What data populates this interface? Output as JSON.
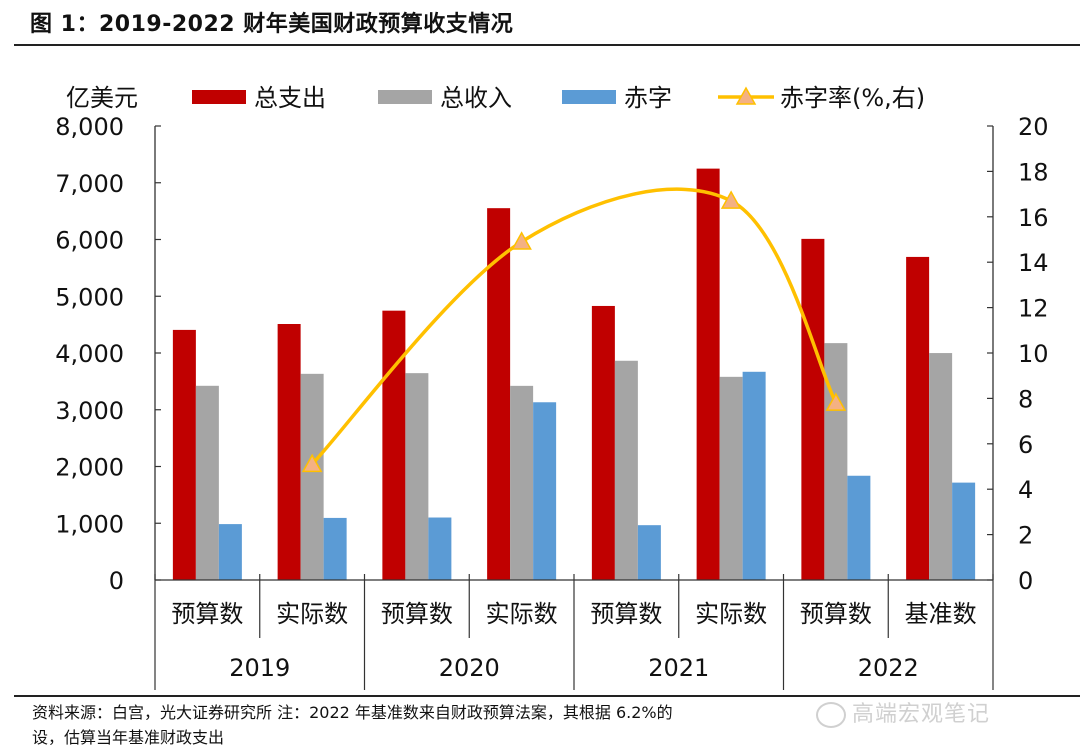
{
  "figure": {
    "title": "图 1：2019-2022 财年美国财政预算收支情况",
    "footnote_line1": "资料来源：白宫，光大证券研究所  注：2022 年基准数来自财政预算法案，其根据 6.2%的",
    "footnote_line2": "设，估算当年基准财政支出",
    "watermark": "高端宏观笔记"
  },
  "chart_data": {
    "type": "bar",
    "title": "2019-2022 财年美国财政预算收支情况",
    "ylabel": "亿美元",
    "y2label": "赤字率(%,右)",
    "ylim": [
      0,
      8000
    ],
    "y_ticks": [
      "0",
      "1,000",
      "2,000",
      "3,000",
      "4,000",
      "5,000",
      "6,000",
      "7,000",
      "8,000"
    ],
    "y_tick_values": [
      0,
      1000,
      2000,
      3000,
      4000,
      5000,
      6000,
      7000,
      8000
    ],
    "y2lim": [
      0,
      20
    ],
    "y2_ticks": [
      "0",
      "2",
      "4",
      "6",
      "8",
      "10",
      "12",
      "14",
      "16",
      "18",
      "20"
    ],
    "y2_tick_values": [
      0,
      2,
      4,
      6,
      8,
      10,
      12,
      14,
      16,
      18,
      20
    ],
    "categories": [
      "预算数",
      "实际数",
      "预算数",
      "实际数",
      "预算数",
      "实际数",
      "预算数",
      "基准数"
    ],
    "groups": [
      {
        "label": "2019",
        "span": 2
      },
      {
        "label": "2020",
        "span": 2
      },
      {
        "label": "2021",
        "span": 2
      },
      {
        "label": "2022",
        "span": 2
      }
    ],
    "legend_position": "top",
    "grid": false,
    "series": [
      {
        "name": "总支出",
        "type": "bar",
        "color": "#C00000",
        "axis": "left",
        "values": [
          4407,
          4511,
          4746,
          6552,
          4829,
          7249,
          6011,
          5693
        ]
      },
      {
        "name": "总收入",
        "type": "bar",
        "color": "#A5A5A5",
        "axis": "left",
        "values": [
          3422,
          3633,
          3645,
          3421,
          3863,
          3580,
          4174,
          3999
        ]
      },
      {
        "name": "赤字",
        "type": "bar",
        "color": "#5B9BD5",
        "axis": "left",
        "values": [
          985,
          1094,
          1101,
          3132,
          966,
          3669,
          1837,
          1716
        ]
      },
      {
        "name": "赤字率(%,右)",
        "type": "line",
        "color": "#FFC000",
        "marker_color": "#F4B183",
        "marker": "triangle",
        "axis": "right",
        "smooth": true,
        "values": [
          null,
          5.1,
          null,
          14.9,
          null,
          16.7,
          7.8,
          null
        ]
      }
    ]
  }
}
